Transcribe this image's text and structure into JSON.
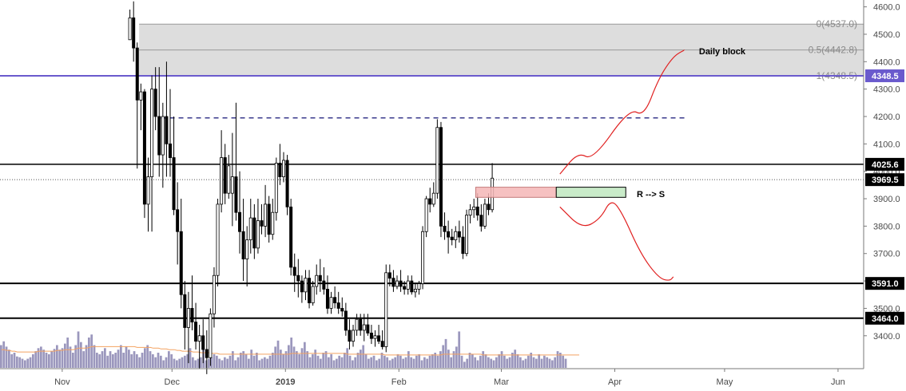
{
  "chart_data": {
    "type": "candlestick",
    "y_axis": {
      "min": 3280,
      "max": 4625,
      "ticks": [
        3400,
        3500,
        3600,
        3700,
        3800,
        3900,
        4000,
        4100,
        4200,
        4300,
        4400,
        4500,
        4600
      ],
      "tick_labels": [
        "3400.0",
        "3500.0",
        "3600.0",
        "3700.0",
        "3800.0",
        "3900.0",
        "4000.0",
        "4100.0",
        "4200.0",
        "4300.0",
        "4400.0",
        "4500.0",
        "4600.0"
      ]
    },
    "x_axis": {
      "start": "2018-10-15",
      "end": "2019-06-08",
      "labels": [
        {
          "date": "2018-11-01",
          "text": "Nov",
          "bold": false
        },
        {
          "date": "2018-12-01",
          "text": "Dec",
          "bold": false
        },
        {
          "date": "2019-01-01",
          "text": "2019",
          "bold": true
        },
        {
          "date": "2019-02-01",
          "text": "Feb",
          "bold": false
        },
        {
          "date": "2019-03-01",
          "text": "Mar",
          "bold": false
        },
        {
          "date": "2019-04-01",
          "text": "Apr",
          "bold": false
        },
        {
          "date": "2019-05-01",
          "text": "May",
          "bold": false
        },
        {
          "date": "2019-06-01",
          "text": "Jun",
          "bold": false
        }
      ]
    },
    "price_tags": [
      {
        "value": 4348.5,
        "text": "4348.5",
        "bg": "#6a5acd",
        "fg": "#ffffff"
      },
      {
        "value": 4025.6,
        "text": "4025.6",
        "bg": "#000000",
        "fg": "#ffffff"
      },
      {
        "value": 3969.5,
        "text": "3969.5",
        "bg": "#000000",
        "fg": "#ffffff"
      },
      {
        "value": 3591.0,
        "text": "3591.0",
        "bg": "#000000",
        "fg": "#ffffff"
      },
      {
        "value": 3464.0,
        "text": "3464.0",
        "bg": "#000000",
        "fg": "#ffffff"
      }
    ],
    "fib_levels": [
      {
        "value": 4537.0,
        "text": "0(4537.0)"
      },
      {
        "value": 4442.8,
        "text": "0.5(4442.8)"
      },
      {
        "value": 4348.5,
        "text": "1(4348.5)"
      }
    ],
    "fib_zone": {
      "start": "2018-11-22",
      "end": "2019-06-08",
      "top": 4537.0,
      "bottom": 4348.5,
      "color": "#d9d9d9"
    },
    "horizontal_lines": [
      {
        "value": 4348.5,
        "color": "#6a5acd",
        "width": 2,
        "style": "solid"
      },
      {
        "value": 4025.6,
        "color": "#000000",
        "width": 1.5,
        "style": "solid"
      },
      {
        "value": 3969.5,
        "color": "#555555",
        "width": 1,
        "style": "dotted"
      },
      {
        "value": 3591.0,
        "color": "#000000",
        "width": 2,
        "style": "solid"
      },
      {
        "value": 3464.0,
        "color": "#000000",
        "width": 2,
        "style": "solid"
      }
    ],
    "dashed_line": {
      "value": 4195,
      "start": "2018-11-28",
      "end": "2019-04-20",
      "color": "#3a3a8c"
    },
    "zones": [
      {
        "kind": "resistance",
        "start": "2019-02-22",
        "end": "2019-03-16",
        "top": 3942,
        "bottom": 3905,
        "fill": "#f4b6b6",
        "stroke": "#c47a7a"
      },
      {
        "kind": "support",
        "start": "2019-03-16",
        "end": "2019-04-04",
        "top": 3942,
        "bottom": 3905,
        "fill": "#bfe8bf",
        "stroke": "#000000"
      }
    ],
    "annotations": [
      {
        "text": "Daily block",
        "date": "2019-04-24",
        "value": 4438
      },
      {
        "text": "R --> S",
        "date": "2019-04-07",
        "value": 3918
      }
    ],
    "projections": [
      {
        "color": "#e02020",
        "points": [
          [
            "2019-03-17",
            3990
          ],
          [
            "2019-03-22",
            4070
          ],
          [
            "2019-03-26",
            4040
          ],
          [
            "2019-04-05",
            4230
          ],
          [
            "2019-04-09",
            4200
          ],
          [
            "2019-04-13",
            4340
          ],
          [
            "2019-04-17",
            4420
          ],
          [
            "2019-04-20",
            4442
          ]
        ]
      },
      {
        "color": "#e02020",
        "points": [
          [
            "2019-03-17",
            3870
          ],
          [
            "2019-03-23",
            3790
          ],
          [
            "2019-03-28",
            3825
          ],
          [
            "2019-03-31",
            3900
          ],
          [
            "2019-04-03",
            3850
          ],
          [
            "2019-04-08",
            3700
          ],
          [
            "2019-04-13",
            3610
          ],
          [
            "2019-04-16",
            3600
          ],
          [
            "2019-04-17",
            3615
          ]
        ]
      }
    ],
    "candles": [
      [
        4480,
        4590,
        4480,
        4560
      ],
      [
        4560,
        4620,
        4400,
        4450
      ],
      [
        4450,
        4470,
        4010,
        4260
      ],
      [
        4260,
        4320,
        4150,
        4290
      ],
      [
        4290,
        4300,
        3830,
        3880
      ],
      [
        3880,
        4050,
        3780,
        3980
      ],
      [
        3980,
        4350,
        3780,
        4300
      ],
      [
        4300,
        4380,
        4150,
        4200
      ],
      [
        4200,
        4380,
        3980,
        4060
      ],
      [
        4060,
        4250,
        3940,
        4200
      ],
      [
        4200,
        4400,
        3980,
        4100
      ],
      [
        4100,
        4300,
        3980,
        4050
      ],
      [
        4050,
        4200,
        3840,
        3860
      ],
      [
        3860,
        3960,
        3660,
        3780
      ],
      [
        3780,
        3900,
        3500,
        3550
      ],
      [
        3550,
        3600,
        3350,
        3430
      ],
      [
        3430,
        3560,
        3300,
        3500
      ],
      [
        3500,
        3620,
        3420,
        3450
      ],
      [
        3450,
        3520,
        3350,
        3380
      ],
      [
        3380,
        3440,
        3280,
        3400
      ],
      [
        3400,
        3460,
        3300,
        3350
      ],
      [
        3350,
        3420,
        3260,
        3320
      ],
      [
        3320,
        3500,
        3290,
        3480
      ],
      [
        3480,
        3650,
        3430,
        3620
      ],
      [
        3620,
        3900,
        3580,
        3880
      ],
      [
        3880,
        4150,
        3850,
        4050
      ],
      [
        4050,
        4100,
        3880,
        3920
      ],
      [
        3920,
        4060,
        3900,
        4020
      ],
      [
        3920,
        4140,
        3800,
        3980
      ],
      [
        3980,
        4250,
        3820,
        3850
      ],
      [
        3850,
        4000,
        3700,
        3780
      ],
      [
        3780,
        3900,
        3600,
        3680
      ],
      [
        3680,
        3800,
        3580,
        3750
      ],
      [
        3750,
        3900,
        3700,
        3830
      ],
      [
        3830,
        3880,
        3680,
        3720
      ],
      [
        3720,
        3900,
        3700,
        3820
      ],
      [
        3820,
        3880,
        3770,
        3800
      ],
      [
        3800,
        3950,
        3760,
        3880
      ],
      [
        3880,
        3910,
        3740,
        3770
      ],
      [
        3770,
        3900,
        3750,
        3850
      ],
      [
        3850,
        4050,
        3820,
        4030
      ],
      [
        4030,
        4100,
        3950,
        3980
      ],
      [
        3980,
        4070,
        3960,
        4040
      ],
      [
        4040,
        4060,
        3840,
        3870
      ],
      [
        3870,
        3900,
        3620,
        3650
      ],
      [
        3650,
        3700,
        3560,
        3620
      ],
      [
        3620,
        3680,
        3540,
        3600
      ],
      [
        3600,
        3620,
        3520,
        3560
      ],
      [
        3560,
        3640,
        3530,
        3610
      ],
      [
        3610,
        3640,
        3500,
        3520
      ],
      [
        3520,
        3600,
        3510,
        3580
      ],
      [
        3580,
        3660,
        3550,
        3620
      ],
      [
        3620,
        3680,
        3560,
        3600
      ],
      [
        3600,
        3650,
        3550,
        3570
      ],
      [
        3570,
        3620,
        3480,
        3500
      ],
      [
        3500,
        3560,
        3480,
        3540
      ],
      [
        3540,
        3580,
        3500,
        3520
      ],
      [
        3520,
        3560,
        3480,
        3500
      ],
      [
        3500,
        3540,
        3470,
        3490
      ],
      [
        3490,
        3520,
        3400,
        3420
      ],
      [
        3420,
        3460,
        3350,
        3380
      ],
      [
        3380,
        3440,
        3360,
        3420
      ],
      [
        3420,
        3480,
        3400,
        3460
      ],
      [
        3460,
        3480,
        3400,
        3420
      ],
      [
        3420,
        3480,
        3380,
        3440
      ],
      [
        3440,
        3480,
        3400,
        3410
      ],
      [
        3410,
        3440,
        3370,
        3390
      ],
      [
        3390,
        3420,
        3360,
        3400
      ],
      [
        3400,
        3440,
        3370,
        3380
      ],
      [
        3380,
        3420,
        3350,
        3360
      ],
      [
        3360,
        3660,
        3340,
        3630
      ],
      [
        3630,
        3660,
        3580,
        3610
      ],
      [
        3610,
        3640,
        3560,
        3580
      ],
      [
        3580,
        3620,
        3570,
        3600
      ],
      [
        3600,
        3640,
        3560,
        3580
      ],
      [
        3580,
        3600,
        3550,
        3570
      ],
      [
        3570,
        3620,
        3550,
        3600
      ],
      [
        3600,
        3620,
        3550,
        3560
      ],
      [
        3560,
        3590,
        3540,
        3570
      ],
      [
        3570,
        3600,
        3550,
        3590
      ],
      [
        3590,
        3800,
        3570,
        3780
      ],
      [
        3780,
        3910,
        3760,
        3900
      ],
      [
        3900,
        3940,
        3850,
        3880
      ],
      [
        3880,
        3960,
        3870,
        3920
      ],
      [
        3920,
        4190,
        3900,
        4160
      ],
      [
        4160,
        4180,
        3760,
        3800
      ],
      [
        3800,
        3850,
        3750,
        3780
      ],
      [
        3780,
        3820,
        3700,
        3760
      ],
      [
        3760,
        3790,
        3730,
        3750
      ],
      [
        3750,
        3800,
        3720,
        3780
      ],
      [
        3780,
        3820,
        3740,
        3760
      ],
      [
        3760,
        3800,
        3680,
        3700
      ],
      [
        3700,
        3860,
        3690,
        3840
      ],
      [
        3840,
        3880,
        3810,
        3860
      ],
      [
        3860,
        3900,
        3830,
        3870
      ],
      [
        3870,
        3920,
        3820,
        3840
      ],
      [
        3840,
        3880,
        3780,
        3800
      ],
      [
        3800,
        3900,
        3790,
        3880
      ],
      [
        3880,
        3920,
        3840,
        3860
      ],
      [
        3860,
        4030,
        3850,
        3975
      ]
    ],
    "volume": {
      "max": 100,
      "values": [
        30,
        35,
        28,
        24,
        18,
        20,
        15,
        14,
        12,
        10,
        12,
        14,
        18,
        22,
        26,
        28,
        24,
        20,
        18,
        22,
        25,
        30,
        24,
        26,
        32,
        40,
        28,
        20,
        30,
        48,
        34,
        22,
        30,
        40,
        44,
        30,
        20,
        18,
        22,
        26,
        16,
        22,
        18,
        20,
        24,
        30,
        20,
        28,
        24,
        18,
        22,
        18,
        14,
        20,
        26,
        30,
        22,
        18,
        14,
        20,
        16,
        10,
        14,
        22,
        18,
        12,
        10,
        12,
        14,
        16,
        18,
        26,
        14,
        10,
        12,
        14,
        28,
        10,
        12,
        14,
        18,
        16,
        12,
        10,
        14,
        12,
        16,
        22,
        10,
        14,
        20,
        22,
        18,
        12,
        24,
        16,
        20,
        10,
        12,
        14,
        12,
        16,
        20,
        28,
        36,
        24,
        18,
        22,
        30,
        40,
        28,
        22,
        18,
        26,
        34,
        22,
        14,
        18,
        24,
        16,
        12,
        20,
        22,
        14,
        18,
        10,
        12,
        16,
        14,
        20,
        26,
        16,
        10,
        14,
        20,
        24,
        30,
        18,
        12,
        14,
        16,
        10,
        12,
        20,
        16,
        14,
        10,
        12,
        14,
        18,
        16,
        12,
        14,
        22,
        14,
        12,
        16,
        18,
        10,
        14,
        12,
        16,
        18,
        20,
        16,
        22,
        30,
        38,
        24,
        14,
        22,
        28,
        48,
        16,
        8,
        12,
        20,
        18,
        14,
        10,
        16,
        22,
        18,
        14,
        12,
        10,
        14,
        18,
        22,
        16,
        12,
        14,
        20,
        24,
        18,
        14,
        10,
        12,
        16,
        20,
        14,
        12,
        18,
        12,
        16,
        14,
        12,
        10,
        14,
        22,
        20,
        16,
        12
      ],
      "ma": [
        24,
        24,
        23,
        23,
        22,
        22,
        21,
        21,
        21,
        21,
        21,
        21,
        21,
        21,
        22,
        22,
        22,
        22,
        22,
        22,
        22,
        23,
        23,
        23,
        24,
        24,
        24,
        24,
        25,
        26,
        26,
        26,
        26,
        27,
        28,
        28,
        28,
        28,
        28,
        28,
        28,
        28,
        28,
        28,
        28,
        28,
        28,
        28,
        28,
        28,
        28,
        27,
        27,
        27,
        27,
        27,
        27,
        26,
        26,
        26,
        25,
        25,
        25,
        24,
        24,
        24,
        23,
        23,
        22,
        22,
        22,
        22,
        21,
        21,
        21,
        20,
        20,
        20,
        20,
        19,
        19,
        19,
        18,
        18,
        18,
        18,
        18,
        18,
        18,
        18,
        18,
        18,
        18,
        18,
        18,
        18,
        18,
        18,
        18,
        18,
        18,
        18,
        18,
        18,
        18,
        18,
        18,
        18,
        18,
        19,
        19,
        19,
        19,
        19,
        19,
        19,
        19,
        19,
        19,
        19,
        19,
        19,
        19,
        19,
        19,
        19,
        19,
        19,
        19,
        19,
        18,
        18,
        18,
        18,
        18,
        18,
        18,
        18,
        18,
        18,
        18,
        18,
        18,
        18,
        17,
        17,
        17,
        17,
        17,
        17,
        17,
        17,
        17,
        17,
        17,
        17,
        17,
        17,
        17,
        17,
        17,
        17,
        17,
        17,
        17,
        17,
        18,
        18,
        18,
        18,
        18,
        18,
        18,
        18,
        18,
        18,
        18,
        18,
        18,
        18,
        18,
        17,
        17,
        17,
        17,
        17,
        17,
        17,
        17,
        17,
        17,
        17,
        17,
        17,
        17,
        17,
        17,
        17,
        17,
        17,
        17,
        17,
        17,
        17,
        17,
        17,
        17,
        17,
        17,
        17,
        17,
        17,
        17,
        17,
        17,
        17,
        17,
        17
      ],
      "bar_color": "#9b97bd",
      "ma_color": "#f4a261"
    }
  }
}
